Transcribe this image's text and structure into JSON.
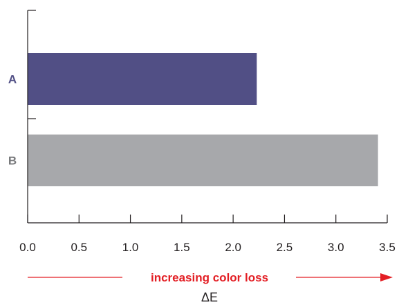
{
  "chart_data": {
    "type": "bar",
    "orientation": "horizontal",
    "categories": [
      "A",
      "B"
    ],
    "values": [
      2.23,
      3.41
    ],
    "colors": [
      "#514f85",
      "#a7a8ab"
    ],
    "label_colors": [
      "#514f85",
      "#77787b"
    ],
    "xlim": [
      0,
      3.5
    ],
    "xticks": [
      "0.0",
      "0.5",
      "1.0",
      "1.5",
      "2.0",
      "2.5",
      "3.0",
      "3.5"
    ],
    "xlabel": "ΔE",
    "annotation": {
      "text": "increasing color loss",
      "color": "#e31e24",
      "direction": "right"
    },
    "grid": false,
    "legend": "none"
  }
}
